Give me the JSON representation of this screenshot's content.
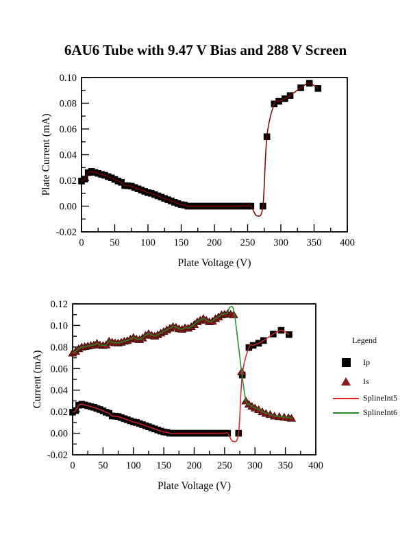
{
  "title": "6AU6 Tube with 9.47 V Bias and 288 V Screen",
  "legend": {
    "title": "Legend",
    "items": [
      {
        "label": "Ip",
        "marker": "square",
        "color": "#000000"
      },
      {
        "label": "Is",
        "marker": "triangle",
        "color": "#8b1a1a"
      },
      {
        "label": "SplineInt5",
        "marker": "line",
        "color": "#e82020"
      },
      {
        "label": "SplineInt6",
        "marker": "line",
        "color": "#1e8c1e"
      }
    ]
  },
  "series_data": {
    "Ip": {
      "x": [
        0,
        5,
        10,
        15,
        20,
        25,
        30,
        35,
        40,
        45,
        50,
        55,
        60,
        65,
        70,
        75,
        80,
        85,
        90,
        95,
        100,
        105,
        110,
        115,
        120,
        125,
        130,
        135,
        140,
        145,
        150,
        155,
        160,
        165,
        170,
        175,
        180,
        185,
        190,
        195,
        200,
        205,
        210,
        215,
        220,
        225,
        230,
        235,
        240,
        245,
        250,
        255,
        273,
        279,
        290,
        297,
        306,
        314,
        330,
        343,
        356
      ],
      "y": [
        0.0195,
        0.021,
        0.026,
        0.027,
        0.0262,
        0.0255,
        0.0247,
        0.024,
        0.023,
        0.022,
        0.0208,
        0.0195,
        0.0185,
        0.016,
        0.0158,
        0.0155,
        0.0145,
        0.0135,
        0.0125,
        0.0115,
        0.0105,
        0.01,
        0.009,
        0.008,
        0.007,
        0.006,
        0.005,
        0.004,
        0.003,
        0.002,
        0.0012,
        0.0008,
        0,
        0,
        0,
        0,
        0,
        0,
        0,
        0,
        0,
        0,
        0,
        0,
        0,
        0,
        0,
        0,
        0,
        0,
        0,
        0,
        0,
        0.054,
        0.0795,
        0.0815,
        0.0835,
        0.086,
        0.092,
        0.0955,
        0.0915
      ]
    },
    "Is": {
      "x": [
        0,
        5,
        10,
        15,
        20,
        25,
        30,
        35,
        40,
        45,
        50,
        55,
        60,
        65,
        70,
        75,
        80,
        85,
        90,
        95,
        100,
        105,
        110,
        115,
        120,
        125,
        130,
        135,
        140,
        145,
        150,
        155,
        160,
        165,
        170,
        175,
        180,
        185,
        190,
        195,
        200,
        205,
        210,
        215,
        220,
        225,
        230,
        235,
        240,
        245,
        250,
        255,
        260,
        265,
        278,
        285,
        290,
        295,
        300,
        306,
        312,
        318,
        325,
        332,
        340,
        348,
        355,
        360
      ],
      "y": [
        0.0745,
        0.076,
        0.0785,
        0.08,
        0.0805,
        0.081,
        0.0815,
        0.082,
        0.0835,
        0.082,
        0.0815,
        0.082,
        0.0855,
        0.0845,
        0.084,
        0.0838,
        0.0845,
        0.0855,
        0.086,
        0.0875,
        0.089,
        0.0875,
        0.087,
        0.0885,
        0.091,
        0.0925,
        0.091,
        0.0902,
        0.0915,
        0.093,
        0.0945,
        0.096,
        0.0975,
        0.099,
        0.0985,
        0.097,
        0.0965,
        0.098,
        0.0975,
        0.099,
        0.101,
        0.1035,
        0.105,
        0.1065,
        0.105,
        0.1035,
        0.104,
        0.1065,
        0.108,
        0.11,
        0.1105,
        0.111,
        0.1105,
        0.11,
        0.057,
        0.03,
        0.027,
        0.025,
        0.0235,
        0.022,
        0.02,
        0.0185,
        0.0175,
        0.016,
        0.0155,
        0.015,
        0.0145,
        0.014
      ]
    },
    "SplineInt5": {
      "x": [
        0,
        5,
        10,
        15,
        20,
        25,
        30,
        35,
        40,
        45,
        50,
        55,
        60,
        65,
        70,
        75,
        80,
        85,
        90,
        95,
        100,
        105,
        110,
        115,
        120,
        125,
        130,
        135,
        140,
        145,
        150,
        155,
        160,
        165,
        170,
        175,
        180,
        185,
        190,
        195,
        200,
        205,
        210,
        215,
        220,
        225,
        230,
        235,
        240,
        245,
        250,
        255,
        264,
        273,
        279,
        290,
        297,
        306,
        314,
        330,
        343,
        356
      ],
      "y": [
        0.0195,
        0.021,
        0.026,
        0.027,
        0.0262,
        0.0255,
        0.0247,
        0.024,
        0.023,
        0.022,
        0.0208,
        0.0195,
        0.0185,
        0.016,
        0.0158,
        0.0155,
        0.0145,
        0.0135,
        0.0125,
        0.0115,
        0.0105,
        0.01,
        0.009,
        0.008,
        0.007,
        0.006,
        0.005,
        0.004,
        0.003,
        0.002,
        0.0012,
        0.0008,
        0,
        0,
        0,
        0,
        0,
        0,
        0,
        0,
        0,
        0,
        0,
        0,
        0,
        0,
        0,
        0,
        0,
        0,
        0,
        0,
        -0.0075,
        0,
        0.054,
        0.0795,
        0.0815,
        0.0835,
        0.086,
        0.092,
        0.0955,
        0.0915
      ]
    },
    "SplineInt6": {
      "x": [
        0,
        5,
        10,
        15,
        20,
        25,
        30,
        35,
        40,
        45,
        50,
        55,
        60,
        65,
        70,
        75,
        80,
        85,
        90,
        95,
        100,
        105,
        110,
        115,
        120,
        125,
        130,
        135,
        140,
        145,
        150,
        155,
        160,
        165,
        170,
        175,
        180,
        185,
        190,
        195,
        200,
        205,
        210,
        215,
        220,
        225,
        230,
        235,
        240,
        245,
        250,
        255,
        259,
        266,
        278,
        285,
        290,
        295,
        300,
        306,
        312,
        318,
        325,
        332,
        340,
        348,
        355,
        360
      ],
      "y": [
        0.0745,
        0.076,
        0.0785,
        0.08,
        0.0805,
        0.081,
        0.0815,
        0.082,
        0.0835,
        0.082,
        0.0815,
        0.082,
        0.0855,
        0.0845,
        0.084,
        0.0838,
        0.0845,
        0.0855,
        0.086,
        0.0875,
        0.089,
        0.0875,
        0.087,
        0.0885,
        0.091,
        0.0925,
        0.091,
        0.0902,
        0.0915,
        0.093,
        0.0945,
        0.096,
        0.0975,
        0.099,
        0.0985,
        0.097,
        0.0965,
        0.098,
        0.0975,
        0.099,
        0.101,
        0.1035,
        0.105,
        0.1065,
        0.105,
        0.1035,
        0.104,
        0.1065,
        0.108,
        0.11,
        0.1105,
        0.112,
        0.117,
        0.111,
        0.057,
        0.03,
        0.027,
        0.025,
        0.0235,
        0.022,
        0.02,
        0.0185,
        0.0175,
        0.016,
        0.0155,
        0.015,
        0.0145,
        0.014
      ]
    }
  },
  "chart_data": [
    {
      "type": "scatter",
      "title": "6AU6 Tube with 9.47 V Bias and 288 V Screen",
      "xlabel": "Plate Voltage (V)",
      "ylabel": "Plate Current (mA)",
      "xlim": [
        0,
        400
      ],
      "ylim": [
        -0.02,
        0.1
      ],
      "xticks": [
        0,
        50,
        100,
        150,
        200,
        250,
        300,
        350,
        400
      ],
      "xtick_labels": [
        "0",
        "50",
        "100",
        "150",
        "200",
        "250",
        "300",
        "350",
        "400"
      ],
      "yticks": [
        -0.02,
        0,
        0.02,
        0.04,
        0.06,
        0.08,
        0.1
      ],
      "ytick_labels": [
        "-0.02",
        "0.00",
        "0.02",
        "0.04",
        "0.06",
        "0.08",
        "0.10"
      ],
      "minor_x_step": 25,
      "minor_y_step": 0.01,
      "grid": false,
      "series": [
        {
          "name": "Ip",
          "plot": "markers",
          "marker": "square",
          "color": "#000000",
          "data_ref": "Ip"
        },
        {
          "name": "SplineInt5",
          "plot": "line",
          "color": "#7f0000",
          "data_ref": "SplineInt5"
        }
      ]
    },
    {
      "type": "scatter",
      "title": "",
      "xlabel": "Plate Voltage (V)",
      "ylabel": "Current (mA)",
      "xlim": [
        0,
        400
      ],
      "ylim": [
        -0.02,
        0.12
      ],
      "xticks": [
        0,
        50,
        100,
        150,
        200,
        250,
        300,
        350,
        400
      ],
      "xtick_labels": [
        "0",
        "50",
        "100",
        "150",
        "200",
        "250",
        "300",
        "350",
        "400"
      ],
      "yticks": [
        -0.02,
        0,
        0.02,
        0.04,
        0.06,
        0.08,
        0.1,
        0.12
      ],
      "ytick_labels": [
        "-0.02",
        "0.00",
        "0.02",
        "0.04",
        "0.06",
        "0.08",
        "0.10",
        "0.12"
      ],
      "minor_x_step": 25,
      "minor_y_step": 0.01,
      "grid": false,
      "legend_position": "right",
      "series": [
        {
          "name": "Ip",
          "plot": "markers",
          "marker": "square",
          "color": "#000000",
          "data_ref": "Ip"
        },
        {
          "name": "Is",
          "plot": "markers",
          "marker": "triangle",
          "color": "#8b1a1a",
          "data_ref": "Is"
        },
        {
          "name": "SplineInt5",
          "plot": "line",
          "color": "#dd2222",
          "data_ref": "SplineInt5"
        },
        {
          "name": "SplineInt6",
          "plot": "line",
          "color": "#1e8c1e",
          "data_ref": "SplineInt6"
        }
      ]
    }
  ]
}
